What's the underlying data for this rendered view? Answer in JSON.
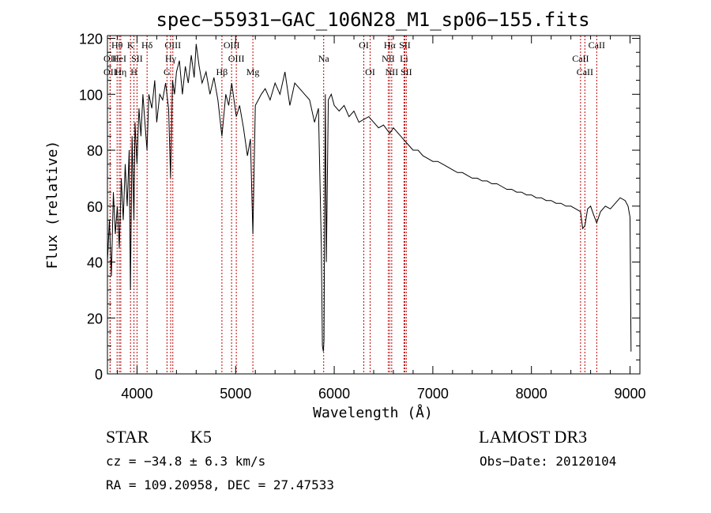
{
  "chart_data": {
    "type": "line",
    "title": "spec−55931−GAC_106N28_M1_sp06−155.fits",
    "xlabel": "Wavelength (Å)",
    "ylabel": "Flux (relative)",
    "xlim": [
      3700,
      9100
    ],
    "ylim": [
      0,
      121
    ],
    "xticks": [
      4000,
      5000,
      6000,
      7000,
      8000,
      9000
    ],
    "yticks": [
      0,
      20,
      40,
      60,
      80,
      100,
      120
    ],
    "grid": false,
    "legend": "none",
    "line_color": "#000000",
    "marker_color": "#c00000",
    "series": [
      {
        "x": [
          3700,
          3720,
          3740,
          3760,
          3780,
          3800,
          3820,
          3840,
          3860,
          3880,
          3900,
          3920,
          3933,
          3950,
          3968,
          3980,
          4000,
          4020,
          4040,
          4060,
          4080,
          4101,
          4120,
          4150,
          4180,
          4200,
          4230,
          4260,
          4290,
          4320,
          4340,
          4360,
          4380,
          4400,
          4430,
          4460,
          4490,
          4520,
          4550,
          4580,
          4600,
          4630,
          4660,
          4700,
          4740,
          4780,
          4820,
          4861,
          4900,
          4930,
          4960,
          5007,
          5040,
          5080,
          5120,
          5150,
          5175,
          5200,
          5230,
          5260,
          5300,
          5350,
          5400,
          5450,
          5500,
          5550,
          5600,
          5650,
          5700,
          5750,
          5800,
          5840,
          5870,
          5880,
          5890,
          5896,
          5910,
          5920,
          5940,
          5970,
          6000,
          6050,
          6100,
          6150,
          6200,
          6250,
          6300,
          6350,
          6400,
          6450,
          6500,
          6563,
          6600,
          6650,
          6700,
          6750,
          6800,
          6850,
          6900,
          6950,
          7000,
          7050,
          7100,
          7150,
          7200,
          7250,
          7300,
          7350,
          7400,
          7450,
          7500,
          7550,
          7600,
          7650,
          7700,
          7750,
          7800,
          7850,
          7900,
          7950,
          8000,
          8050,
          8100,
          8150,
          8200,
          8250,
          8300,
          8350,
          8400,
          8450,
          8498,
          8520,
          8542,
          8570,
          8600,
          8630,
          8662,
          8700,
          8750,
          8800,
          8850,
          8900,
          8950,
          8980,
          9000,
          9010
        ],
        "y": [
          40,
          55,
          35,
          65,
          50,
          60,
          45,
          70,
          55,
          75,
          60,
          80,
          30,
          85,
          55,
          90,
          75,
          95,
          85,
          100,
          90,
          80,
          100,
          95,
          105,
          90,
          100,
          98,
          104,
          95,
          70,
          105,
          100,
          108,
          112,
          100,
          110,
          104,
          114,
          106,
          118,
          110,
          104,
          108,
          100,
          106,
          98,
          85,
          100,
          96,
          104,
          92,
          96,
          88,
          78,
          84,
          50,
          96,
          98,
          100,
          102,
          98,
          104,
          100,
          108,
          96,
          104,
          102,
          100,
          98,
          90,
          95,
          45,
          10,
          8,
          12,
          100,
          40,
          98,
          100,
          96,
          94,
          96,
          92,
          94,
          90,
          91,
          92,
          90,
          88,
          89,
          86,
          88,
          86,
          84,
          82,
          80,
          80,
          78,
          77,
          76,
          76,
          75,
          74,
          73,
          72,
          72,
          71,
          70,
          70,
          69,
          69,
          68,
          68,
          67,
          66,
          66,
          65,
          65,
          64,
          64,
          63,
          63,
          62,
          62,
          61,
          61,
          60,
          60,
          59,
          58,
          52,
          53,
          59,
          60,
          57,
          54,
          58,
          60,
          59,
          61,
          63,
          62,
          60,
          56,
          8
        ]
      }
    ],
    "lines": [
      {
        "label": "Hθ",
        "x": 3798,
        "row": 0
      },
      {
        "label": "OII",
        "x": 3727,
        "row": 1
      },
      {
        "label": "OII",
        "x": 3727,
        "row": 2
      },
      {
        "label": "HeI",
        "x": 3820,
        "row": 1
      },
      {
        "label": "Hη",
        "x": 3835,
        "row": 2
      },
      {
        "label": "K",
        "x": 3934,
        "row": 0
      },
      {
        "label": "SII",
        "x": 4000,
        "row": 1
      },
      {
        "label": "H",
        "x": 3969,
        "row": 2
      },
      {
        "label": "Hδ",
        "x": 4102,
        "row": 0
      },
      {
        "label": "OIII",
        "x": 4363,
        "row": 0
      },
      {
        "label": "Hγ",
        "x": 4341,
        "row": 1
      },
      {
        "label": "G",
        "x": 4304,
        "row": 2
      },
      {
        "label": "Hβ",
        "x": 4861,
        "row": 2
      },
      {
        "label": "OIII",
        "x": 4959,
        "row": 0
      },
      {
        "label": "OIII",
        "x": 5007,
        "row": 1
      },
      {
        "label": "Mg",
        "x": 5175,
        "row": 2
      },
      {
        "label": "Na",
        "x": 5893,
        "row": 1
      },
      {
        "label": "OI",
        "x": 6300,
        "row": 0
      },
      {
        "label": "OI",
        "x": 6364,
        "row": 2
      },
      {
        "label": "Hα",
        "x": 6563,
        "row": 0
      },
      {
        "label": "SII",
        "x": 6716,
        "row": 0
      },
      {
        "label": "NII",
        "x": 6548,
        "row": 1
      },
      {
        "label": "Li",
        "x": 6708,
        "row": 1
      },
      {
        "label": "NII",
        "x": 6583,
        "row": 2
      },
      {
        "label": "SII",
        "x": 6731,
        "row": 2
      },
      {
        "label": "CaII",
        "x": 8662,
        "row": 0
      },
      {
        "label": "CaII",
        "x": 8498,
        "row": 1
      },
      {
        "label": "CaII",
        "x": 8542,
        "row": 2
      }
    ]
  },
  "info": {
    "class": "STAR",
    "subclass": "K5",
    "survey": "LAMOST DR3",
    "cz": "cz = −34.8 ± 6.3 km/s",
    "obsdate": "Obs−Date: 20120104",
    "radec": "RA = 109.20958, DEC =  27.47533"
  }
}
